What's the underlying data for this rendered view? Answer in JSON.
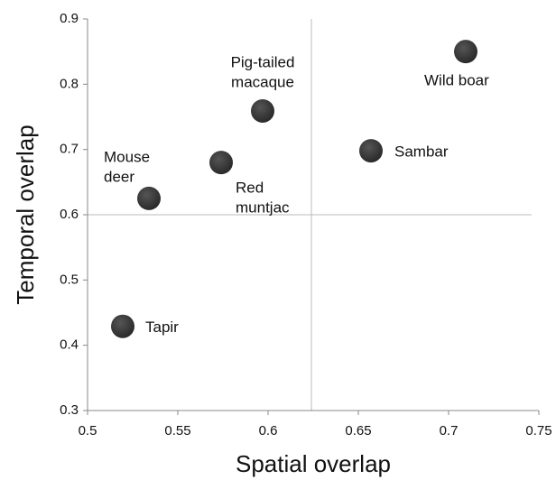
{
  "chart_data": {
    "type": "scatter",
    "xlabel": "Spatial overlap",
    "ylabel": "Temporal overlap",
    "xlim": [
      0.5,
      0.75
    ],
    "xticks": [
      0.5,
      0.55,
      0.6,
      0.65,
      0.7,
      0.75
    ],
    "ylim": [
      0.3,
      0.9
    ],
    "yticks": [
      0.3,
      0.4,
      0.5,
      0.6,
      0.7,
      0.8,
      0.9
    ],
    "grid": false,
    "color": "#2a2a2a",
    "vline": 0.624,
    "hline": 0.6,
    "x": [
      0.534,
      0.574,
      0.597,
      0.657,
      0.7095,
      0.5195
    ],
    "y": [
      0.625,
      0.68,
      0.759,
      0.698,
      0.85,
      0.429
    ],
    "labels": [
      [
        "Mouse",
        "deer"
      ],
      [
        "Red",
        "muntjac"
      ],
      [
        "Pig-tailed",
        "macaque"
      ],
      [
        "Sambar"
      ],
      [
        "Wild boar"
      ],
      [
        "Tapir"
      ]
    ]
  }
}
